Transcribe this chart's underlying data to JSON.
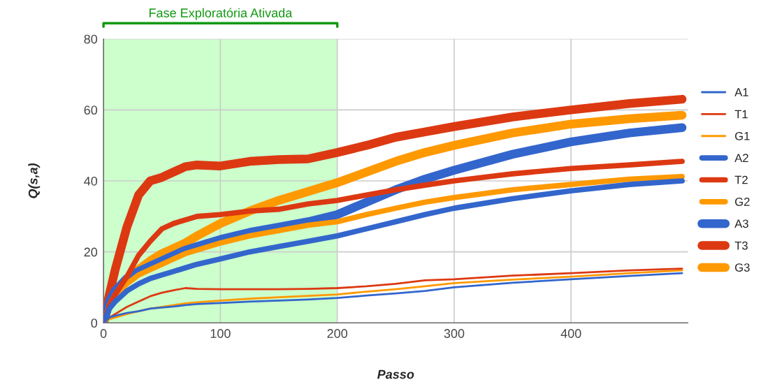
{
  "chart_data": {
    "type": "line",
    "xlabel": "Passo",
    "ylabel": "Q(s,a)",
    "x": [
      0,
      5,
      10,
      20,
      30,
      40,
      50,
      60,
      70,
      80,
      100,
      125,
      150,
      175,
      200,
      225,
      250,
      275,
      300,
      350,
      400,
      450,
      495
    ],
    "xlim": [
      0,
      500
    ],
    "xticks": [
      0,
      100,
      200,
      300,
      400
    ],
    "ylim": [
      0,
      80
    ],
    "yticks": [
      0,
      20,
      40,
      60,
      80
    ],
    "grid": true,
    "legend": "right",
    "marker": "none",
    "line_style": "solid",
    "bands": [
      {
        "axis": "x",
        "from": 0,
        "to": 200,
        "label": "Fase Exploratória Ativada",
        "color": "#99ff99"
      }
    ],
    "series": [
      {
        "name": "A1",
        "color": "#3366cc",
        "values": [
          0,
          1.5,
          2,
          2.8,
          3.3,
          4,
          4.3,
          4.6,
          5,
          5.3,
          5.6,
          6,
          6.3,
          6.6,
          7,
          7.7,
          8.3,
          9,
          10,
          11.3,
          12.3,
          13.2,
          14
        ]
      },
      {
        "name": "T1",
        "color": "#dc3912",
        "values": [
          0,
          1.5,
          2.5,
          4.5,
          6,
          7.5,
          8.5,
          9.2,
          9.8,
          9.6,
          9.5,
          9.5,
          9.5,
          9.6,
          9.8,
          10.3,
          11,
          12,
          12.3,
          13.3,
          14,
          14.8,
          15.3
        ]
      },
      {
        "name": "G1",
        "color": "#ff9900",
        "values": [
          0,
          1,
          1.5,
          2.5,
          3.3,
          4,
          4.5,
          5,
          5.5,
          5.8,
          6.3,
          6.8,
          7.2,
          7.6,
          8,
          8.8,
          9.5,
          10.3,
          11.2,
          12.2,
          13,
          14,
          14.8
        ]
      },
      {
        "name": "A2",
        "color": "#3366cc",
        "values": [
          0,
          4,
          6,
          9,
          11,
          12.5,
          13.5,
          14.5,
          15.5,
          16.5,
          18,
          20,
          21.5,
          23,
          24.5,
          26.5,
          28.5,
          30.5,
          32.3,
          35,
          37.2,
          39,
          40
        ]
      },
      {
        "name": "T2",
        "color": "#dc3912",
        "values": [
          0,
          5,
          8,
          13,
          19,
          23,
          26.5,
          28,
          29,
          30,
          30.5,
          31.5,
          32,
          33.5,
          34.5,
          36,
          37.5,
          38.8,
          40,
          42,
          43.5,
          44.5,
          45.5
        ]
      },
      {
        "name": "G2",
        "color": "#ff9900",
        "values": [
          0,
          5,
          8,
          11,
          13.5,
          15,
          16.5,
          18,
          19.5,
          20.5,
          22.5,
          24.5,
          26,
          27.5,
          28.5,
          30.5,
          32.3,
          34,
          35.3,
          37.5,
          39,
          40.5,
          41.2
        ]
      },
      {
        "name": "A3",
        "color": "#3366cc",
        "values": [
          0,
          6,
          9,
          12.5,
          14.5,
          16,
          17.5,
          19,
          20.5,
          21.5,
          23.5,
          25.5,
          27,
          28.5,
          30.5,
          34,
          37.5,
          40.5,
          43,
          47.5,
          51,
          53.5,
          55
        ]
      },
      {
        "name": "T3",
        "color": "#dc3912",
        "values": [
          0,
          8,
          15,
          27,
          36,
          40,
          41,
          42.5,
          44,
          44.5,
          44.2,
          45.5,
          46,
          46.2,
          48,
          50,
          52.3,
          53.8,
          55.3,
          58,
          60,
          61.8,
          63
        ]
      },
      {
        "name": "G3",
        "color": "#ff9900",
        "values": [
          0,
          6,
          9,
          12,
          15,
          17.5,
          19.5,
          21,
          22.5,
          24.5,
          28,
          31.5,
          34.5,
          37,
          39.5,
          42.5,
          45.5,
          48,
          50,
          53.5,
          56,
          57.5,
          58.5
        ]
      }
    ]
  }
}
